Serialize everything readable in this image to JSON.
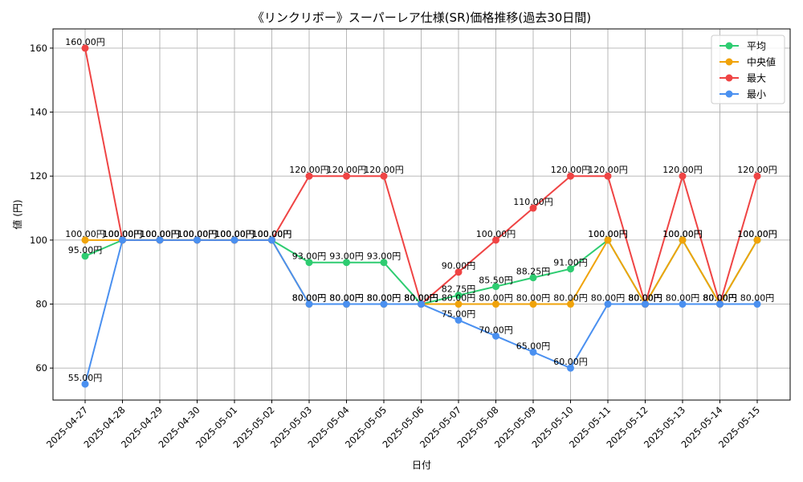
{
  "chart_data": {
    "type": "line",
    "title": "《リンクリボー》スーパーレア仕様(SR)価格推移(過去30日間)",
    "xlabel": "日付",
    "ylabel": "値 (円)",
    "ylim": [
      50,
      166
    ],
    "yticks": [
      60,
      80,
      100,
      120,
      140,
      160
    ],
    "grid": true,
    "legend_position": "top-right",
    "categories": [
      "2025-04-27",
      "2025-04-28",
      "2025-04-29",
      "2025-04-30",
      "2025-05-01",
      "2025-05-02",
      "2025-05-03",
      "2025-05-04",
      "2025-05-05",
      "2025-05-06",
      "2025-05-07",
      "2025-05-08",
      "2025-05-09",
      "2025-05-10",
      "2025-05-11",
      "2025-05-12",
      "2025-05-13",
      "2025-05-14",
      "2025-05-15"
    ],
    "series": [
      {
        "name": "平均",
        "color": "#2ecc71",
        "values": [
          95,
          100,
          100,
          100,
          100,
          100,
          93,
          93,
          93,
          80,
          82.75,
          85.5,
          88.25,
          91,
          100,
          80,
          100,
          80,
          100
        ]
      },
      {
        "name": "中央値",
        "color": "#f0a30a",
        "values": [
          100,
          100,
          100,
          100,
          100,
          100,
          80,
          80,
          80,
          80,
          80,
          80,
          80,
          80,
          100,
          80,
          100,
          80,
          100
        ]
      },
      {
        "name": "最大",
        "color": "#ef4444",
        "values": [
          160,
          100,
          100,
          100,
          100,
          100,
          120,
          120,
          120,
          80,
          90,
          100,
          110,
          120,
          120,
          80,
          120,
          80,
          120
        ]
      },
      {
        "name": "最小",
        "color": "#4a90f0",
        "values": [
          55,
          100,
          100,
          100,
          100,
          100,
          80,
          80,
          80,
          80,
          75,
          70,
          65,
          60,
          80,
          80,
          80,
          80,
          80
        ]
      }
    ],
    "value_suffix": "円"
  }
}
